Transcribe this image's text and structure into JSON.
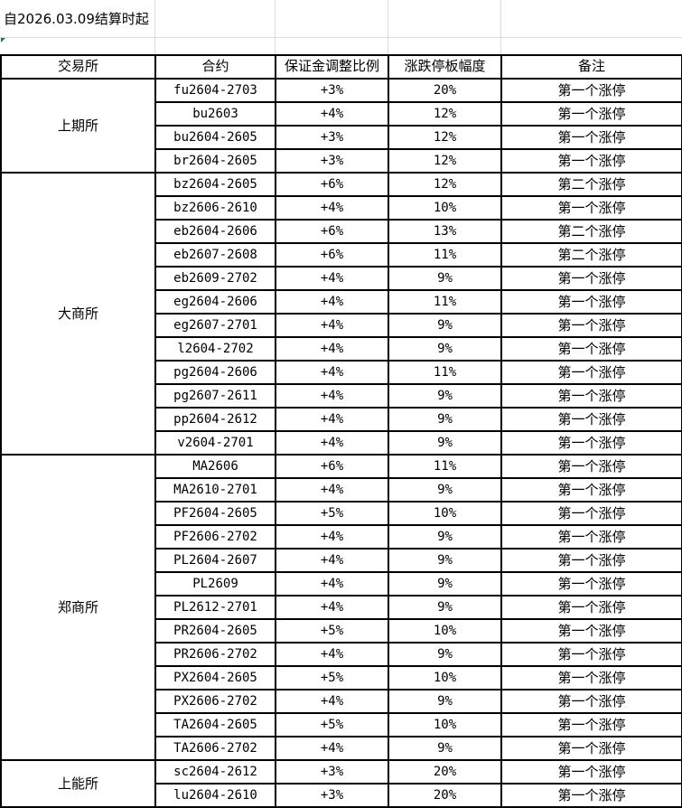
{
  "title": "自2026.03.09结算时起",
  "headers": [
    "交易所",
    "合约",
    "保证金调整比例",
    "涨跌停板幅度",
    "备注"
  ],
  "groups": [
    {
      "exchange": "上期所",
      "rows": [
        [
          "fu2604-2703",
          "+3%",
          "20%",
          "第一个涨停"
        ],
        [
          "bu2603",
          "+4%",
          "12%",
          "第一个涨停"
        ],
        [
          "bu2604-2605",
          "+3%",
          "12%",
          "第一个涨停"
        ],
        [
          "br2604-2605",
          "+3%",
          "12%",
          "第一个涨停"
        ]
      ]
    },
    {
      "exchange": "大商所",
      "rows": [
        [
          "bz2604-2605",
          "+6%",
          "12%",
          "第二个涨停"
        ],
        [
          "bz2606-2610",
          "+4%",
          "10%",
          "第一个涨停"
        ],
        [
          "eb2604-2606",
          "+6%",
          "13%",
          "第二个涨停"
        ],
        [
          "eb2607-2608",
          "+6%",
          "11%",
          "第二个涨停"
        ],
        [
          "eb2609-2702",
          "+4%",
          "9%",
          "第一个涨停"
        ],
        [
          "eg2604-2606",
          "+4%",
          "11%",
          "第一个涨停"
        ],
        [
          "eg2607-2701",
          "+4%",
          "9%",
          "第一个涨停"
        ],
        [
          "l2604-2702",
          "+4%",
          "9%",
          "第一个涨停"
        ],
        [
          "pg2604-2606",
          "+4%",
          "11%",
          "第一个涨停"
        ],
        [
          "pg2607-2611",
          "+4%",
          "9%",
          "第一个涨停"
        ],
        [
          "pp2604-2612",
          "+4%",
          "9%",
          "第一个涨停"
        ],
        [
          "v2604-2701",
          "+4%",
          "9%",
          "第一个涨停"
        ]
      ]
    },
    {
      "exchange": "郑商所",
      "rows": [
        [
          "MA2606",
          "+6%",
          "11%",
          "第一个涨停"
        ],
        [
          "MA2610-2701",
          "+4%",
          "9%",
          "第一个涨停"
        ],
        [
          "PF2604-2605",
          "+5%",
          "10%",
          "第一个涨停"
        ],
        [
          "PF2606-2702",
          "+4%",
          "9%",
          "第一个涨停"
        ],
        [
          "PL2604-2607",
          "+4%",
          "9%",
          "第一个涨停"
        ],
        [
          "PL2609",
          "+4%",
          "9%",
          "第一个涨停"
        ],
        [
          "PL2612-2701",
          "+4%",
          "9%",
          "第一个涨停"
        ],
        [
          "PR2604-2605",
          "+5%",
          "10%",
          "第一个涨停"
        ],
        [
          "PR2606-2702",
          "+4%",
          "9%",
          "第一个涨停"
        ],
        [
          "PX2604-2605",
          "+5%",
          "10%",
          "第一个涨停"
        ],
        [
          "PX2606-2702",
          "+4%",
          "9%",
          "第一个涨停"
        ],
        [
          "TA2604-2605",
          "+5%",
          "10%",
          "第一个涨停"
        ],
        [
          "TA2606-2702",
          "+4%",
          "9%",
          "第一个涨停"
        ]
      ]
    },
    {
      "exchange": "上能所",
      "rows": [
        [
          "sc2604-2612",
          "+3%",
          "20%",
          "第一个涨停"
        ],
        [
          "lu2604-2610",
          "+3%",
          "20%",
          "第一个涨停"
        ]
      ]
    }
  ]
}
